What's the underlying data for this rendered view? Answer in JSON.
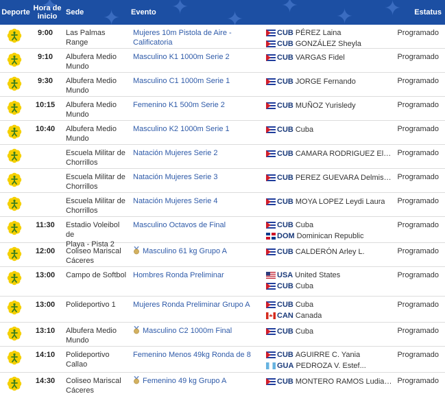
{
  "headers": {
    "deporte": "Deporte",
    "hora_line1": "Hora de",
    "hora_line2": "inicio",
    "sede": "Sede",
    "evento": "Evento",
    "estatus": "Estatus"
  },
  "colors": {
    "header_bg": "#1c4fa3",
    "link": "#2e5aa8",
    "icon_yellow": "#f5d000",
    "icon_green": "#3a7d1e"
  },
  "rows": [
    {
      "sport_icon": "shooting-icon",
      "time": "9:00",
      "sede": [
        "Las Palmas Range"
      ],
      "evento": "Mujeres 10m Pistola de Aire - Calificatoria",
      "medal": false,
      "participants": [
        {
          "flag": "cuba-flag-icon",
          "code": "CUB",
          "name": "PÉREZ Laina"
        },
        {
          "flag": "cuba-flag-icon",
          "code": "CUB",
          "name": "GONZÁLEZ Sheyla"
        }
      ],
      "status": "Programado"
    },
    {
      "sport_icon": "canoe-icon",
      "time": "9:10",
      "sede": [
        "Albufera Medio",
        "Mundo"
      ],
      "evento": "Masculino K1 1000m Serie 2",
      "medal": false,
      "participants": [
        {
          "flag": "cuba-flag-icon",
          "code": "CUB",
          "name": "VARGAS Fidel"
        }
      ],
      "status": "Programado"
    },
    {
      "sport_icon": "canoe-icon",
      "time": "9:30",
      "sede": [
        "Albufera Medio",
        "Mundo"
      ],
      "evento": "Masculino C1 1000m Serie 1",
      "medal": false,
      "participants": [
        {
          "flag": "cuba-flag-icon",
          "code": "CUB",
          "name": "JORGE Fernando"
        }
      ],
      "status": "Programado"
    },
    {
      "sport_icon": "canoe-icon",
      "time": "10:15",
      "sede": [
        "Albufera Medio",
        "Mundo"
      ],
      "evento": "Femenino K1 500m Serie 2",
      "medal": false,
      "participants": [
        {
          "flag": "cuba-flag-icon",
          "code": "CUB",
          "name": "MUÑOZ Yurisledy"
        }
      ],
      "status": "Programado"
    },
    {
      "sport_icon": "canoe-icon",
      "time": "10:40",
      "sede": [
        "Albufera Medio",
        "Mundo"
      ],
      "evento": "Masculino K2 1000m Serie 1",
      "medal": false,
      "participants": [
        {
          "flag": "cuba-flag-icon",
          "code": "CUB",
          "name": "Cuba"
        }
      ],
      "status": "Programado"
    },
    {
      "sport_icon": "swimming-icon",
      "time": "",
      "sede": [
        "Escuela Militar de",
        "Chorrillos"
      ],
      "evento": "Natación Mujeres Serie 2",
      "medal": false,
      "participants": [
        {
          "flag": "cuba-flag-icon",
          "code": "CUB",
          "name": "CAMARA RODRIGUEZ Eliani..."
        }
      ],
      "status": "Programado"
    },
    {
      "sport_icon": "swimming-icon",
      "time": "",
      "sede": [
        "Escuela Militar de",
        "Chorrillos"
      ],
      "evento": "Natación Mujeres Serie 3",
      "medal": false,
      "participants": [
        {
          "flag": "cuba-flag-icon",
          "code": "CUB",
          "name": "PEREZ GUEVARA Delmis D..."
        }
      ],
      "status": "Programado"
    },
    {
      "sport_icon": "swimming-icon",
      "time": "",
      "sede": [
        "Escuela Militar de",
        "Chorrillos"
      ],
      "evento": "Natación Mujeres Serie 4",
      "medal": false,
      "participants": [
        {
          "flag": "cuba-flag-icon",
          "code": "CUB",
          "name": "MOYA LOPEZ Leydi Laura"
        }
      ],
      "status": "Programado"
    },
    {
      "sport_icon": "beach-volleyball-icon",
      "time": "11:30",
      "sede": [
        "Estadio Voleibol de",
        "Playa - Pista 2"
      ],
      "evento": "Masculino Octavos de Final",
      "medal": false,
      "participants": [
        {
          "flag": "cuba-flag-icon",
          "code": "CUB",
          "name": "Cuba"
        },
        {
          "flag": "dominican-republic-flag-icon",
          "code": "DOM",
          "name": "Dominican Republic"
        }
      ],
      "status": "Programado"
    },
    {
      "sport_icon": "weightlifting-icon",
      "time": "12:00",
      "sede": [
        "Coliseo Mariscal",
        "Cáceres"
      ],
      "evento": "Masculino 61 kg Grupo A",
      "medal": true,
      "participants": [
        {
          "flag": "cuba-flag-icon",
          "code": "CUB",
          "name": "CALDERÓN Arley L."
        }
      ],
      "status": "Programado"
    },
    {
      "sport_icon": "softball-icon",
      "time": "13:00",
      "sede": [
        "Campo de Softbol"
      ],
      "evento": "Hombres Ronda Preliminar",
      "medal": false,
      "participants": [
        {
          "flag": "usa-flag-icon",
          "code": "USA",
          "name": "United States"
        },
        {
          "flag": "cuba-flag-icon",
          "code": "CUB",
          "name": "Cuba"
        }
      ],
      "status": "Programado"
    },
    {
      "sport_icon": "volleyball-icon",
      "time": "13:00",
      "sede": [
        "Polideportivo 1"
      ],
      "evento": "Mujeres Ronda Preliminar Grupo A",
      "medal": false,
      "participants": [
        {
          "flag": "cuba-flag-icon",
          "code": "CUB",
          "name": "Cuba"
        },
        {
          "flag": "canada-flag-icon",
          "code": "CAN",
          "name": "Canada"
        }
      ],
      "status": "Programado"
    },
    {
      "sport_icon": "canoe-icon",
      "time": "13:10",
      "sede": [
        "Albufera Medio",
        "Mundo"
      ],
      "evento": "Masculino C2 1000m Final",
      "medal": true,
      "participants": [
        {
          "flag": "cuba-flag-icon",
          "code": "CUB",
          "name": "Cuba"
        }
      ],
      "status": "Programado"
    },
    {
      "sport_icon": "taekwondo-icon",
      "time": "14:10",
      "sede": [
        "Polideportivo",
        "Callao"
      ],
      "evento": "Femenino Menos 49kg Ronda de 8",
      "medal": false,
      "participants": [
        {
          "flag": "cuba-flag-icon",
          "code": "CUB",
          "name": "AGUIRRE C. Yania"
        },
        {
          "flag": "guatemala-flag-icon",
          "code": "GUA",
          "name": "PEDROZA V. Estef..."
        }
      ],
      "status": "Programado"
    },
    {
      "sport_icon": "weightlifting-icon",
      "time": "14:30",
      "sede": [
        "Coliseo Mariscal",
        "Cáceres"
      ],
      "evento": "Femenino 49 kg Grupo A",
      "medal": true,
      "participants": [
        {
          "flag": "cuba-flag-icon",
          "code": "CUB",
          "name": "MONTERO RAMOS Ludia M."
        }
      ],
      "status": "Programado"
    }
  ]
}
